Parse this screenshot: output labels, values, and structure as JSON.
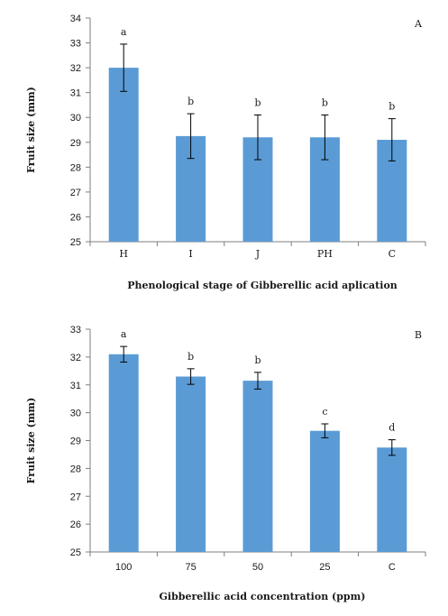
{
  "chart_data": [
    {
      "type": "bar",
      "panel_label": "A",
      "categories": [
        "H",
        "I",
        "J",
        "PH",
        "C"
      ],
      "values": [
        32.0,
        29.25,
        29.2,
        29.2,
        29.1
      ],
      "error": [
        0.95,
        0.9,
        0.9,
        0.9,
        0.85
      ],
      "letters": [
        "a",
        "b",
        "b",
        "b",
        "b"
      ],
      "ylabel": "Fruit size (mm)",
      "xlabel": "Phenological stage of Gibberellic acid aplication",
      "ylim": [
        25,
        34
      ],
      "yticks": [
        "25",
        "26",
        "27",
        "28",
        "29",
        "30",
        "31",
        "32",
        "33",
        "34"
      ],
      "bar_color": "#5b9bd5",
      "grid": false
    },
    {
      "type": "bar",
      "panel_label": "B",
      "categories": [
        "100",
        "75",
        "50",
        "25",
        "C"
      ],
      "values": [
        32.1,
        31.3,
        31.15,
        29.35,
        28.75
      ],
      "error": [
        0.28,
        0.28,
        0.3,
        0.25,
        0.28
      ],
      "letters": [
        "a",
        "b",
        "b",
        "c",
        "d"
      ],
      "ylabel": "Fruit size (mm)",
      "xlabel": "Gibberellic acid concentration (ppm)",
      "ylim": [
        25,
        33
      ],
      "yticks": [
        "25",
        "26",
        "27",
        "28",
        "29",
        "30",
        "31",
        "32",
        "33"
      ],
      "bar_color": "#5b9bd5",
      "grid": false
    }
  ]
}
